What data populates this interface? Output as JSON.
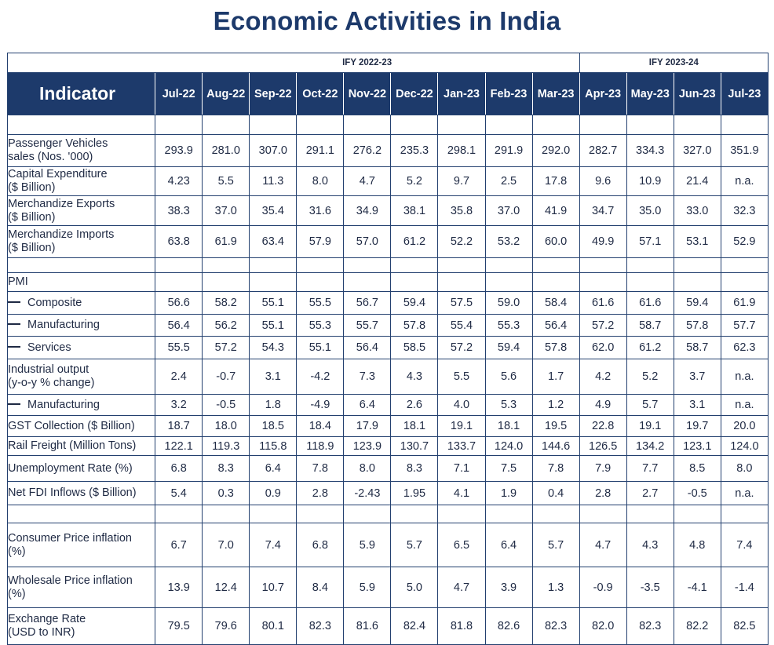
{
  "title": "Economic Activities in India",
  "fy_headers": [
    "IFY 2022-23",
    "IFY 2023-24"
  ],
  "indicator_header": "Indicator",
  "months": [
    "Jul-22",
    "Aug-22",
    "Sep-22",
    "Oct-22",
    "Nov-22",
    "Dec-22",
    "Jan-23",
    "Feb-23",
    "Mar-23",
    "Apr-23",
    "May-23",
    "Jun-23",
    "Jul-23"
  ],
  "rows": [
    {
      "label_lines": [
        "Passenger Vehicles",
        "sales (Nos. '000)"
      ],
      "values": [
        "293.9",
        "281.0",
        "307.0",
        "291.1",
        "276.2",
        "235.3",
        "298.1",
        "291.9",
        "292.0",
        "282.7",
        "334.3",
        "327.0",
        "351.9"
      ]
    },
    {
      "label_lines": [
        "Capital Expenditure",
        "($ Billion)"
      ],
      "values": [
        "4.23",
        "5.5",
        "11.3",
        "8.0",
        "4.7",
        "5.2",
        "9.7",
        "2.5",
        "17.8",
        "9.6",
        "10.9",
        "21.4",
        "n.a."
      ]
    },
    {
      "label_lines": [
        "Merchandize Exports",
        "($ Billion)"
      ],
      "values": [
        "38.3",
        "37.0",
        "35.4",
        "31.6",
        "34.9",
        "38.1",
        "35.8",
        "37.0",
        "41.9",
        "34.7",
        "35.0",
        "33.0",
        "32.3"
      ]
    },
    {
      "label_lines": [
        "Merchandize Imports",
        "($ Billion)"
      ],
      "values": [
        "63.8",
        "61.9",
        "63.4",
        "57.9",
        "57.0",
        "61.2",
        "52.2",
        "53.2",
        "60.0",
        "49.9",
        "57.1",
        "53.1",
        "52.9"
      ]
    },
    {
      "label_lines": [
        "PMI"
      ],
      "values": [
        "",
        "",
        "",
        "",
        "",
        "",
        "",
        "",
        "",
        "",
        "",
        "",
        ""
      ]
    },
    {
      "label_lines": [
        "Composite"
      ],
      "values": [
        "56.6",
        "58.2",
        "55.1",
        "55.5",
        "56.7",
        "59.4",
        "57.5",
        "59.0",
        "58.4",
        "61.6",
        "61.6",
        "59.4",
        "61.9"
      ]
    },
    {
      "label_lines": [
        "Manufacturing"
      ],
      "values": [
        "56.4",
        "56.2",
        "55.1",
        "55.3",
        "55.7",
        "57.8",
        "55.4",
        "55.3",
        "56.4",
        "57.2",
        "58.7",
        "57.8",
        "57.7"
      ]
    },
    {
      "label_lines": [
        "Services"
      ],
      "values": [
        "55.5",
        "57.2",
        "54.3",
        "55.1",
        "56.4",
        "58.5",
        "57.2",
        "59.4",
        "57.8",
        "62.0",
        "61.2",
        "58.7",
        "62.3"
      ]
    },
    {
      "label_lines": [
        "Industrial output",
        "(y-o-y % change)"
      ],
      "values": [
        "2.4",
        "-0.7",
        "3.1",
        "-4.2",
        "7.3",
        "4.3",
        "5.5",
        "5.6",
        "1.7",
        "4.2",
        "5.2",
        "3.7",
        "n.a."
      ]
    },
    {
      "label_lines": [
        "Manufacturing"
      ],
      "values": [
        "3.2",
        "-0.5",
        "1.8",
        "-4.9",
        "6.4",
        "2.6",
        "4.0",
        "5.3",
        "1.2",
        "4.9",
        "5.7",
        "3.1",
        "n.a."
      ]
    },
    {
      "label_lines": [
        "GST Collection ($ Billion)"
      ],
      "values": [
        "18.7",
        "18.0",
        "18.5",
        "18.4",
        "17.9",
        "18.1",
        "19.1",
        "18.1",
        "19.5",
        "22.8",
        "19.1",
        "19.7",
        "20.0"
      ]
    },
    {
      "label_lines": [
        "Rail Freight (Million Tons)"
      ],
      "values": [
        "122.1",
        "119.3",
        "115.8",
        "118.9",
        "123.9",
        "130.7",
        "133.7",
        "124.0",
        "144.6",
        "126.5",
        "134.2",
        "123.1",
        "124.0"
      ]
    },
    {
      "label_lines": [
        "Unemployment Rate (%)"
      ],
      "values": [
        "6.8",
        "8.3",
        "6.4",
        "7.8",
        "8.0",
        "8.3",
        "7.1",
        "7.5",
        "7.8",
        "7.9",
        "7.7",
        "8.5",
        "8.0"
      ]
    },
    {
      "label_lines": [
        "Net FDI Inflows ($ Billion)"
      ],
      "values": [
        "5.4",
        "0.3",
        "0.9",
        "2.8",
        "-2.43",
        "1.95",
        "4.1",
        "1.9",
        "0.4",
        "2.8",
        "2.7",
        "-0.5",
        "n.a."
      ]
    },
    {
      "label_lines": [
        "Consumer Price inflation",
        "(%)"
      ],
      "values": [
        "6.7",
        "7.0",
        "7.4",
        "6.8",
        "5.9",
        "5.7",
        "6.5",
        "6.4",
        "5.7",
        "4.7",
        "4.3",
        "4.8",
        "7.4"
      ]
    },
    {
      "label_lines": [
        "Wholesale Price inflation",
        "(%)"
      ],
      "values": [
        "13.9",
        "12.4",
        "10.7",
        "8.4",
        "5.9",
        "5.0",
        "4.7",
        "3.9",
        "1.3",
        "-0.9",
        "-3.5",
        "-4.1",
        "-1.4"
      ]
    },
    {
      "label_lines": [
        "Exchange Rate",
        "(USD to INR)"
      ],
      "values": [
        "79.5",
        "79.6",
        "80.1",
        "82.3",
        "81.6",
        "82.4",
        "81.8",
        "82.6",
        "82.3",
        "82.0",
        "82.3",
        "82.2",
        "82.5"
      ]
    }
  ]
}
